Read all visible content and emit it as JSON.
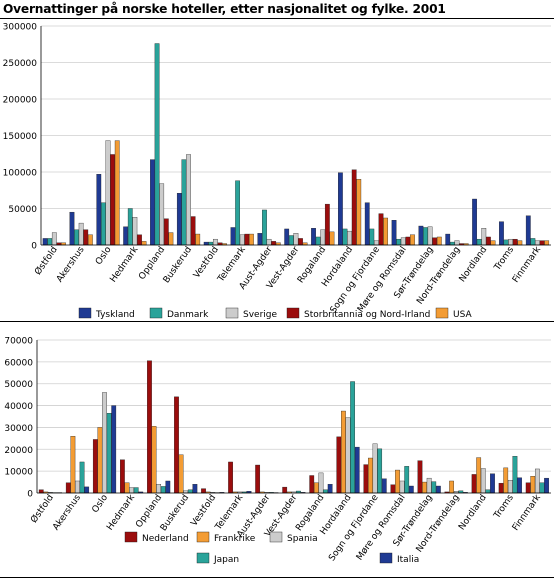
{
  "title": "Overnattinger på norske hoteller, etter nasjonalitet og fylke. 2001",
  "chart_data": [
    {
      "type": "bar",
      "categories": [
        "Østfold",
        "Akershus",
        "Oslo",
        "Hedmark",
        "Oppland",
        "Buskerud",
        "Vestfold",
        "Telemark",
        "Aust-Agder",
        "Vest-Agder",
        "Rogaland",
        "Hordaland",
        "Sogn og Fjordane",
        "Møre og Romsdal",
        "Sør-Trøndelag",
        "Nord-Trøndelag",
        "Nordland",
        "Troms",
        "Finnmark"
      ],
      "ylim": [
        0,
        300000
      ],
      "yticks": [
        "0",
        "50000",
        "100000",
        "150000",
        "200000",
        "250000",
        "300000"
      ],
      "grid": true,
      "legend_position": "bottom",
      "series": [
        {
          "name": "Tyskland",
          "color": "#1f3a93",
          "values": [
            9000,
            45000,
            97000,
            25000,
            117000,
            71000,
            4000,
            24000,
            16000,
            22000,
            23000,
            99000,
            58000,
            34000,
            26000,
            15000,
            63000,
            32000,
            40000
          ]
        },
        {
          "name": "Danmark",
          "color": "#2aa39a",
          "values": [
            9000,
            21000,
            58000,
            50000,
            276000,
            117000,
            4000,
            88000,
            48000,
            13000,
            11000,
            22000,
            22000,
            8000,
            24000,
            4000,
            8000,
            7000,
            9000
          ]
        },
        {
          "name": "Sverige",
          "color": "#cccccc",
          "values": [
            17000,
            30000,
            143000,
            38000,
            84000,
            124000,
            8000,
            14000,
            8000,
            16000,
            21000,
            19000,
            6000,
            10000,
            25000,
            6000,
            23000,
            8000,
            6000
          ]
        },
        {
          "name": "Storbritannia og Nord-Irland",
          "color": "#9b0d0d",
          "values": [
            3000,
            21000,
            124000,
            14000,
            36000,
            39000,
            3000,
            15000,
            5000,
            9000,
            56000,
            103000,
            43000,
            11000,
            10000,
            2000,
            11000,
            8000,
            6000
          ]
        },
        {
          "name": "USA",
          "color": "#f39c34",
          "values": [
            3000,
            14000,
            143000,
            5000,
            17000,
            15000,
            2000,
            15000,
            3000,
            3000,
            18000,
            90000,
            37000,
            14000,
            11000,
            2000,
            6000,
            6000,
            6000
          ]
        }
      ]
    },
    {
      "type": "bar",
      "categories": [
        "Østfold",
        "Akershus",
        "Oslo",
        "Hedmark",
        "Oppland",
        "Buskerud",
        "Vestfold",
        "Telemark",
        "Aust-Agder",
        "Vest-Agder",
        "Rogaland",
        "Hordaland",
        "Sogn og Fjordane",
        "Møre og Romsdal",
        "Sør-Trøndelag",
        "Nord-Trøndelag",
        "Nordland",
        "Troms",
        "Finnmark"
      ],
      "ylim": [
        0,
        70000
      ],
      "yticks": [
        "0",
        "10000",
        "20000",
        "30000",
        "40000",
        "50000",
        "60000",
        "70000"
      ],
      "grid": true,
      "legend_position": "bottom",
      "series": [
        {
          "name": "Nederland",
          "color": "#9b0d0d",
          "values": [
            1500,
            4700,
            24500,
            15200,
            60500,
            44000,
            2000,
            14200,
            12800,
            2700,
            8000,
            25700,
            13000,
            3800,
            14800,
            500,
            8500,
            4500,
            4700
          ]
        },
        {
          "name": "Frankrike",
          "color": "#f39c34",
          "values": [
            500,
            26000,
            30000,
            4700,
            30500,
            17500,
            500,
            500,
            500,
            500,
            4700,
            37500,
            16000,
            10500,
            5000,
            5500,
            16200,
            11500,
            7700
          ]
        },
        {
          "name": "Spania",
          "color": "#cccccc",
          "values": [
            300,
            5500,
            46000,
            2500,
            4000,
            1000,
            300,
            500,
            300,
            500,
            9200,
            34500,
            22500,
            5500,
            6800,
            800,
            11200,
            5800,
            11000
          ]
        },
        {
          "name": "Japan",
          "color": "#2aa39a",
          "values": [
            200,
            14200,
            36500,
            2500,
            3000,
            1500,
            200,
            500,
            300,
            900,
            1500,
            51000,
            20200,
            12200,
            5200,
            1000,
            1500,
            16800,
            4700
          ]
        },
        {
          "name": "Italia",
          "color": "#1f3a93",
          "values": [
            200,
            2800,
            40000,
            500,
            5500,
            4000,
            300,
            800,
            200,
            300,
            4000,
            21000,
            6500,
            3200,
            3200,
            300,
            8800,
            7000,
            6800
          ]
        }
      ]
    }
  ]
}
